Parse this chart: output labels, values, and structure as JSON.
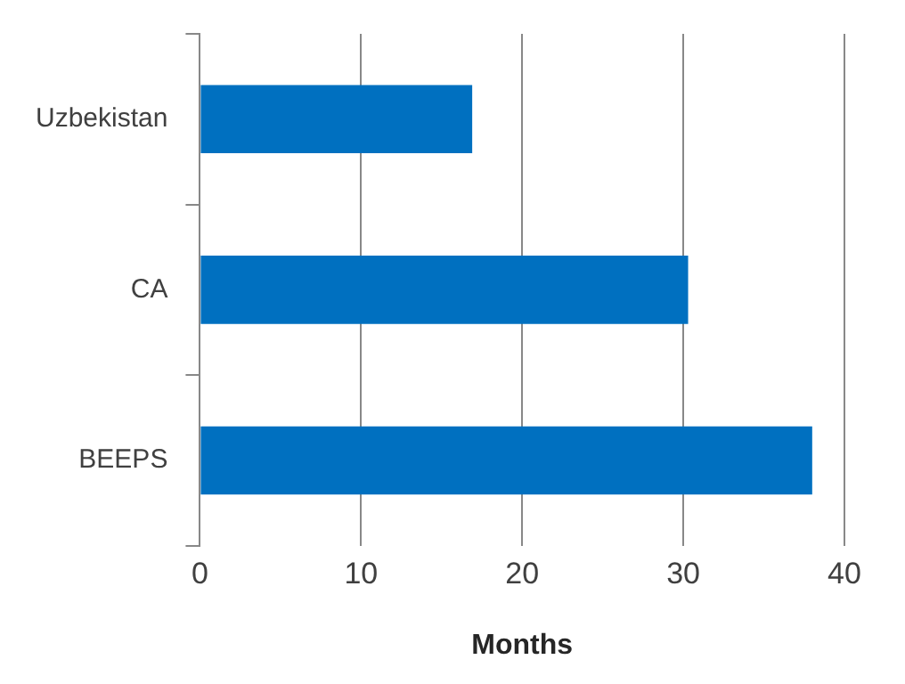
{
  "chart_data": {
    "type": "bar",
    "orientation": "horizontal",
    "categories": [
      "Uzbekistan",
      "CA",
      "BEEPS"
    ],
    "values": [
      16.9,
      30.3,
      38
    ],
    "color": "#0070c0",
    "xlabel": "Months",
    "xlim": [
      0,
      40
    ],
    "xticks": [
      0,
      10,
      20,
      30,
      40
    ],
    "grid": "x",
    "legend": false
  }
}
